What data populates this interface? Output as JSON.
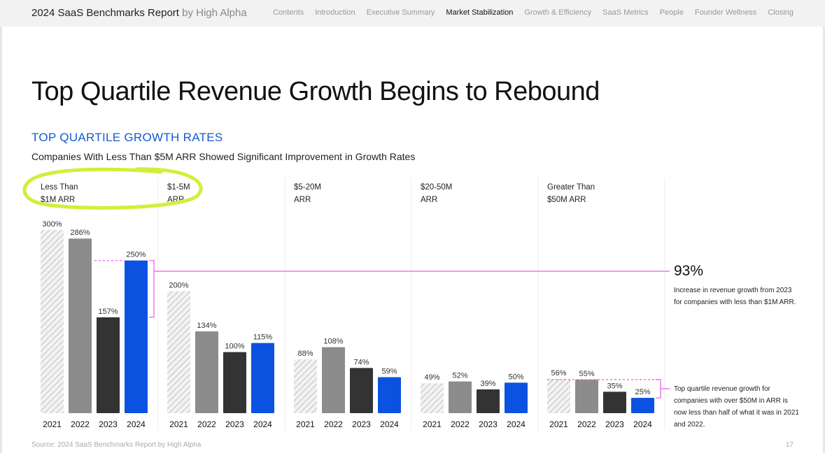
{
  "header": {
    "brand_main": "2024 SaaS Benchmarks Report",
    "brand_by": " by High Alpha",
    "nav": [
      "Contents",
      "Introduction",
      "Executive Summary",
      "Market Stabilization",
      "Growth & Efficiency",
      "SaaS Metrics",
      "People",
      "Founder Wellness",
      "Closing"
    ],
    "active_nav": "Market Stabilization"
  },
  "page": {
    "title": "Top Quartile Revenue Growth Begins to Rebound",
    "subtitle": "TOP QUARTILE GROWTH RATES",
    "description": "Companies With Less Than $5M ARR Showed Significant Improvement in Growth Rates"
  },
  "callouts": {
    "big_value": "93%",
    "text1": "Increase in revenue growth from 2023 for companies with less than $1M ARR.",
    "text2": "Top quartile revenue growth for companies with over $50M in ARR is now less than half of what it was in 2021 and 2022."
  },
  "footer": {
    "source": "Source: 2024 SaaS Benchmarks Report by High Alpha",
    "page_number": "17"
  },
  "colors": {
    "accent_blue": "#0c52e0",
    "bar_2022": "#8c8c8c",
    "bar_2023": "#333333",
    "highlight": "#d3ee3a",
    "annotation": "#e65be6"
  },
  "chart_data": {
    "type": "bar",
    "categories": [
      "2021",
      "2022",
      "2023",
      "2024"
    ],
    "groups": [
      {
        "label_lines": [
          "Less Than",
          "$1M ARR"
        ],
        "values": [
          300,
          286,
          157,
          250
        ],
        "labels": [
          "300%",
          "286%",
          "157%",
          "250%"
        ]
      },
      {
        "label_lines": [
          "$1-5M",
          "ARR"
        ],
        "values": [
          200,
          134,
          100,
          115
        ],
        "labels": [
          "200%",
          "134%",
          "100%",
          "115%"
        ]
      },
      {
        "label_lines": [
          "$5-20M",
          "ARR"
        ],
        "values": [
          88,
          108,
          74,
          59
        ],
        "labels": [
          "88%",
          "108%",
          "74%",
          "59%"
        ]
      },
      {
        "label_lines": [
          "$20-50M",
          "ARR"
        ],
        "values": [
          49,
          52,
          39,
          50
        ],
        "labels": [
          "49%",
          "52%",
          "39%",
          "50%"
        ]
      },
      {
        "label_lines": [
          "Greater Than",
          "$50M ARR"
        ],
        "values": [
          56,
          55,
          35,
          25
        ],
        "labels": [
          "56%",
          "55%",
          "35%",
          "25%"
        ]
      }
    ],
    "ylim": [
      0,
      300
    ],
    "xlabel": "",
    "ylabel": ""
  }
}
